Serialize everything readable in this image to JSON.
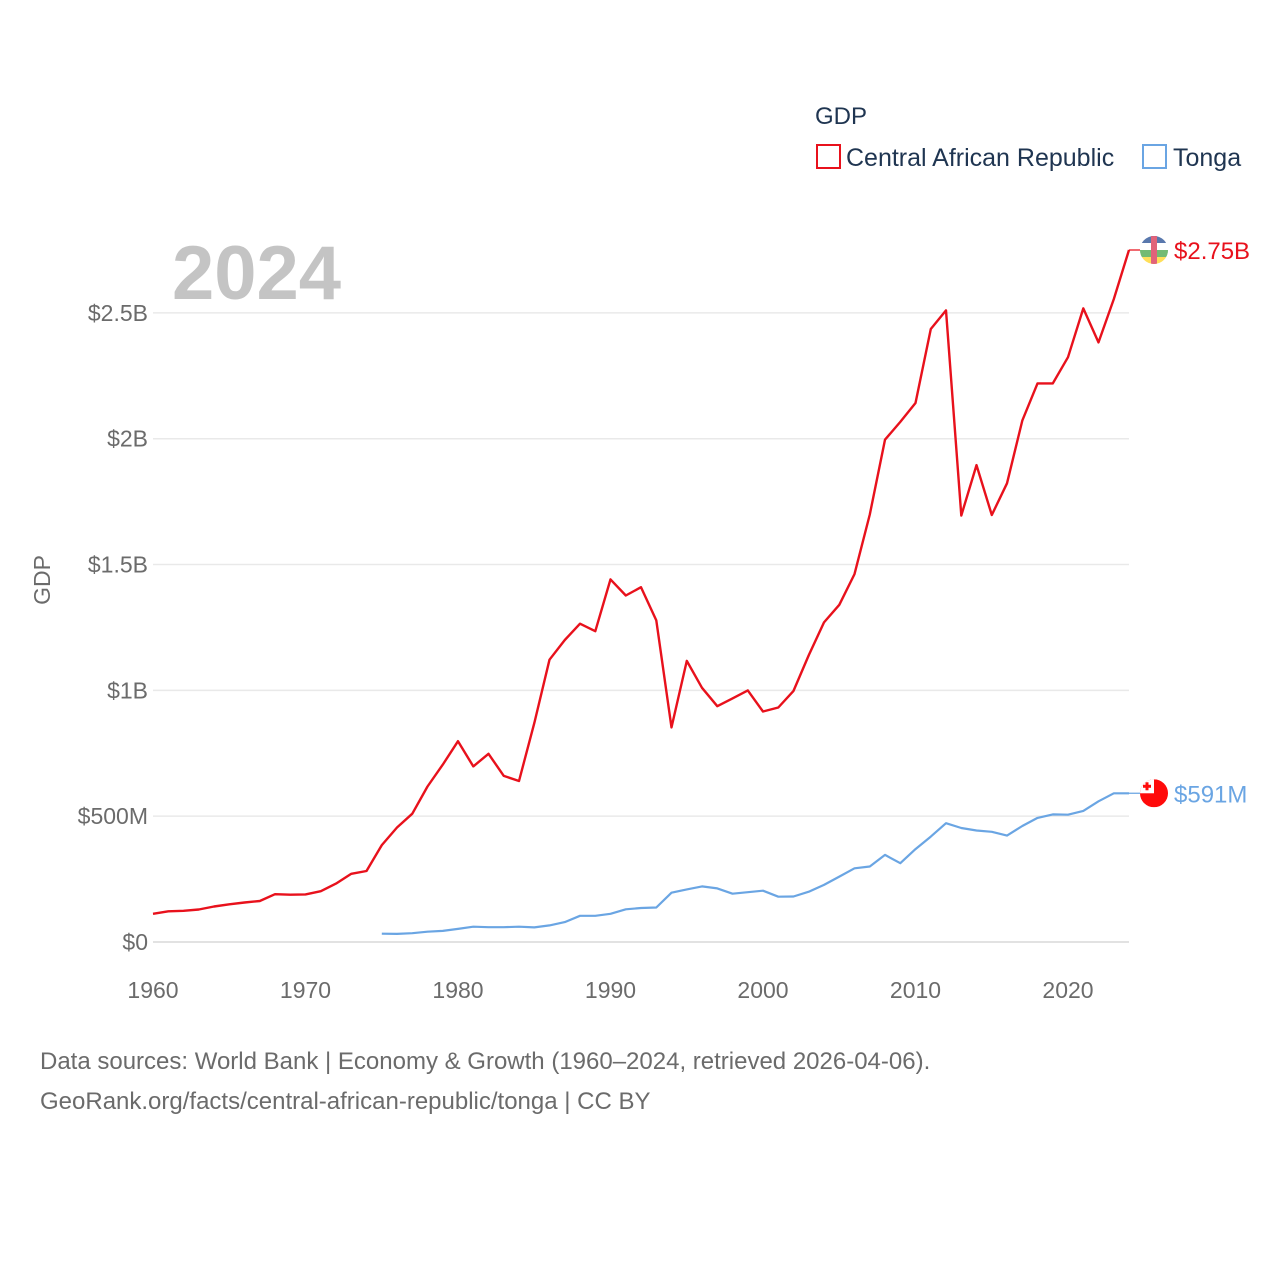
{
  "chart_data": {
    "type": "line",
    "title": "",
    "year_label": "2024",
    "ylabel": "GDP",
    "xlabel": "",
    "xlim": [
      1960,
      2024
    ],
    "ylim": [
      0,
      2750000000
    ],
    "x_ticks": [
      1960,
      1970,
      1980,
      1990,
      2000,
      2010,
      2020
    ],
    "y_ticks": [
      {
        "value": 0,
        "label": "$0"
      },
      {
        "value": 500000000,
        "label": "$500M"
      },
      {
        "value": 1000000000,
        "label": "$1B"
      },
      {
        "value": 1500000000,
        "label": "$1.5B"
      },
      {
        "value": 2000000000,
        "label": "$2B"
      },
      {
        "value": 2500000000,
        "label": "$2.5B"
      }
    ],
    "grid": true,
    "legend": {
      "title": "GDP",
      "position": "top-right"
    },
    "series": [
      {
        "name": "Central African Republic",
        "color": "#e8111c",
        "end_label": "$2.75B",
        "flag": "central-african-republic-flag-icon",
        "x": [
          1960,
          1961,
          1962,
          1963,
          1964,
          1965,
          1966,
          1967,
          1968,
          1969,
          1970,
          1971,
          1972,
          1973,
          1974,
          1975,
          1976,
          1977,
          1978,
          1979,
          1980,
          1981,
          1982,
          1983,
          1984,
          1985,
          1986,
          1987,
          1988,
          1989,
          1990,
          1991,
          1992,
          1993,
          1994,
          1995,
          1996,
          1997,
          1998,
          1999,
          2000,
          2001,
          2002,
          2003,
          2004,
          2005,
          2006,
          2007,
          2008,
          2009,
          2010,
          2011,
          2012,
          2013,
          2014,
          2015,
          2016,
          2017,
          2018,
          2019,
          2020,
          2021,
          2022,
          2023,
          2024
        ],
        "values": [
          112000000,
          122000000,
          124000000,
          129000000,
          141000000,
          150000000,
          157000000,
          163000000,
          190000000,
          188000000,
          189000000,
          202000000,
          232000000,
          271000000,
          282000000,
          385000000,
          455000000,
          510000000,
          618000000,
          705000000,
          798000000,
          698000000,
          748000000,
          660000000,
          640000000,
          870000000,
          1122000000,
          1200000000,
          1265000000,
          1235000000,
          1441000000,
          1377000000,
          1410000000,
          1278000000,
          853000000,
          1117000000,
          1010000000,
          937000000,
          968000000,
          1000000000,
          916000000,
          932000000,
          998000000,
          1140000000,
          1270000000,
          1340000000,
          1462000000,
          1699000000,
          1996000000,
          2067000000,
          2142000000,
          2436000000,
          2510000000,
          1695000000,
          1895000000,
          1697000000,
          1823000000,
          2072000000,
          2220000000,
          2220000000,
          2324000000,
          2518000000,
          2383000000,
          2555000000,
          2750000000
        ]
      },
      {
        "name": "Tonga",
        "color": "#6aa5e3",
        "end_label": "$591M",
        "flag": "tonga-flag-icon",
        "x": [
          1975,
          1976,
          1977,
          1978,
          1979,
          1980,
          1981,
          1982,
          1983,
          1984,
          1985,
          1986,
          1987,
          1988,
          1989,
          1990,
          1991,
          1992,
          1993,
          1994,
          1995,
          1996,
          1997,
          1998,
          1999,
          2000,
          2001,
          2002,
          2003,
          2004,
          2005,
          2006,
          2007,
          2008,
          2009,
          2010,
          2011,
          2012,
          2013,
          2014,
          2015,
          2016,
          2017,
          2018,
          2019,
          2020,
          2021,
          2022,
          2023,
          2024
        ],
        "values": [
          33000000,
          32000000,
          35000000,
          41000000,
          44000000,
          52000000,
          61000000,
          59000000,
          59000000,
          61000000,
          58000000,
          66000000,
          79000000,
          104000000,
          104000000,
          112000000,
          130000000,
          135000000,
          137000000,
          196000000,
          209000000,
          221000000,
          213000000,
          192000000,
          198000000,
          204000000,
          180000000,
          181000000,
          200000000,
          227000000,
          260000000,
          293000000,
          300000000,
          346000000,
          313000000,
          369000000,
          419000000,
          472000000,
          453000000,
          443000000,
          438000000,
          423000000,
          461000000,
          493000000,
          507000000,
          506000000,
          521000000,
          559000000,
          591000000,
          591000000
        ]
      }
    ]
  },
  "source": {
    "line1": "Data sources: World Bank | Economy & Growth (1960–2024, retrieved 2026-04-06).",
    "line2": "GeoRank.org/facts/central-african-republic/tonga | CC BY"
  }
}
